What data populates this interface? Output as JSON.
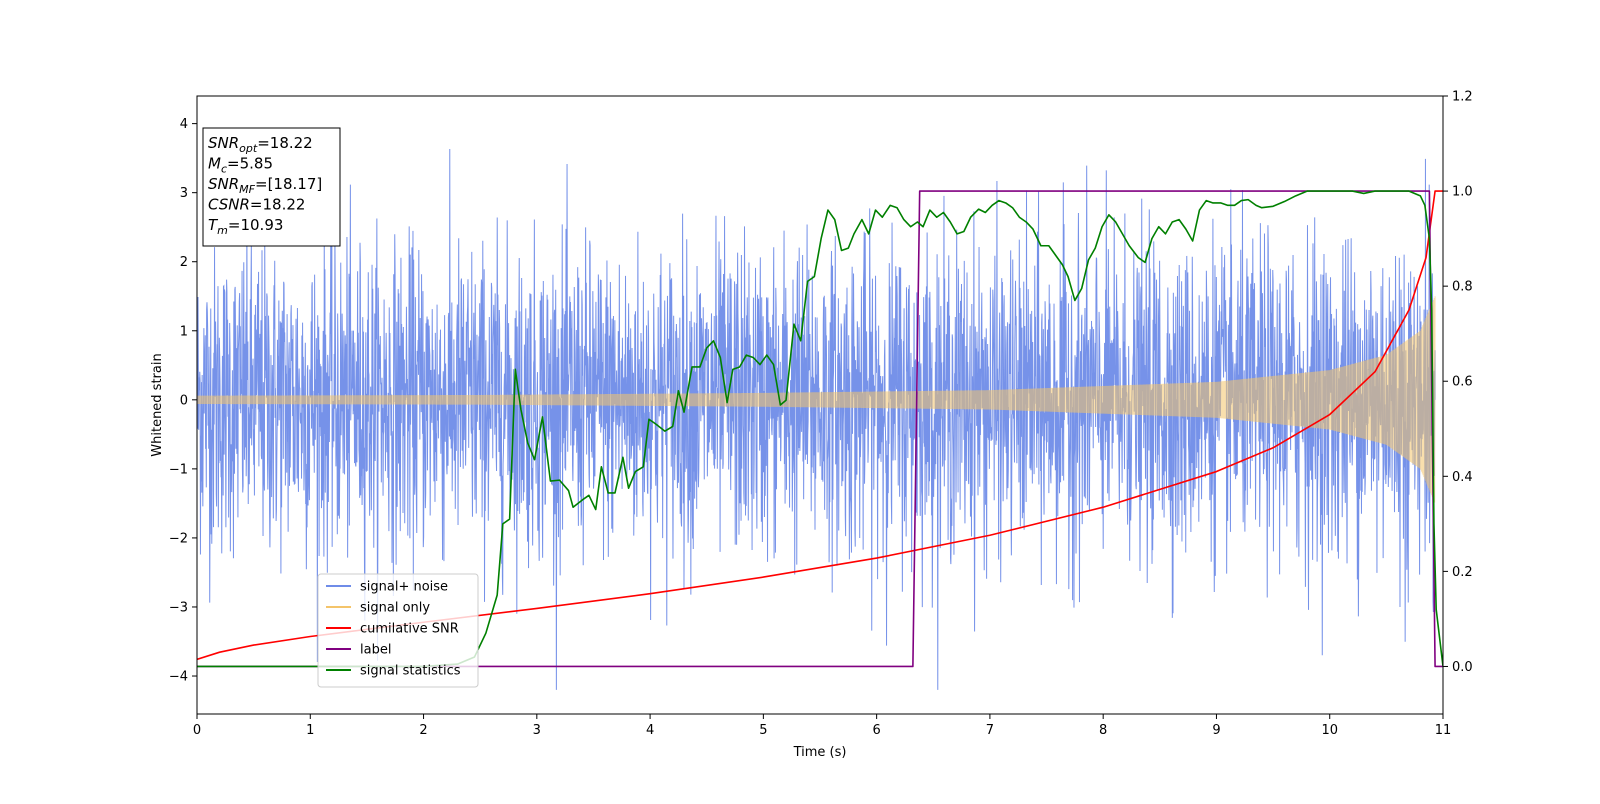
{
  "chart_data": {
    "type": "line",
    "xlabel": "Time (s)",
    "ylabel": "Whitened strain",
    "xlim": [
      0,
      11
    ],
    "ylim_left": [
      -4.55,
      4.4
    ],
    "ylim_right": [
      -0.1,
      1.2
    ],
    "x_ticks": [
      0,
      1,
      2,
      3,
      4,
      5,
      6,
      7,
      8,
      9,
      10,
      11
    ],
    "y_ticks_left": [
      -4,
      -3,
      -2,
      -1,
      0,
      1,
      2,
      3,
      4
    ],
    "y_ticks_right": [
      0.0,
      0.2,
      0.4,
      0.6,
      0.8,
      1.0,
      1.2
    ],
    "info_box": [
      {
        "main": "SNR",
        "sub": "opt",
        "value": "=18.22"
      },
      {
        "main": "M",
        "sub": "c",
        "value": "=5.85"
      },
      {
        "main": "SNR",
        "sub": "MF",
        "value": "=[18.17]"
      },
      {
        "main": "CSNR",
        "sub": "",
        "value": "=18.22"
      },
      {
        "main": "T",
        "sub": "m",
        "value": "=10.93"
      }
    ],
    "legend_position": "lower-left",
    "series": [
      {
        "name": "signal+ noise",
        "axis": "left",
        "color": "#6f8ce8",
        "kind": "noise",
        "description_values": {
          "std": 1.1,
          "max_peak": 4.0,
          "min_peak": -4.2,
          "x_range": [
            0,
            10.93
          ]
        }
      },
      {
        "name": "signal only",
        "axis": "left",
        "color": "#f4c46a",
        "kind": "chirp",
        "amplitude": [
          [
            0,
            0.06
          ],
          [
            2.5,
            0.07
          ],
          [
            5,
            0.1
          ],
          [
            7,
            0.14
          ],
          [
            9,
            0.26
          ],
          [
            10,
            0.43
          ],
          [
            10.5,
            0.65
          ],
          [
            10.8,
            1.0
          ],
          [
            10.93,
            1.5
          ]
        ],
        "x_range": [
          0,
          10.93
        ]
      },
      {
        "name": "cumilative SNR",
        "axis": "right",
        "color": "#ff0000",
        "points": [
          [
            0,
            0.015
          ],
          [
            0.2,
            0.03
          ],
          [
            0.5,
            0.045
          ],
          [
            1,
            0.063
          ],
          [
            2,
            0.093
          ],
          [
            3,
            0.122
          ],
          [
            4,
            0.153
          ],
          [
            5,
            0.188
          ],
          [
            6,
            0.228
          ],
          [
            7,
            0.276
          ],
          [
            8,
            0.335
          ],
          [
            9,
            0.41
          ],
          [
            9.5,
            0.46
          ],
          [
            10,
            0.53
          ],
          [
            10.4,
            0.62
          ],
          [
            10.7,
            0.75
          ],
          [
            10.85,
            0.86
          ],
          [
            10.93,
            1.0
          ],
          [
            11,
            1.0
          ]
        ]
      },
      {
        "name": "label",
        "axis": "right",
        "color": "#800080",
        "points": [
          [
            0,
            0.0
          ],
          [
            6.32,
            0.0
          ],
          [
            6.38,
            1.0
          ],
          [
            10.88,
            1.0
          ],
          [
            10.93,
            0.0
          ],
          [
            11,
            0.0
          ]
        ]
      },
      {
        "name": "signal statistics",
        "axis": "right",
        "color": "#008000",
        "points": [
          [
            0,
            0.0
          ],
          [
            1,
            0.0
          ],
          [
            2,
            0.0
          ],
          [
            2.3,
            0.005
          ],
          [
            2.45,
            0.02
          ],
          [
            2.55,
            0.07
          ],
          [
            2.65,
            0.15
          ],
          [
            2.7,
            0.3
          ],
          [
            2.76,
            0.31
          ],
          [
            2.81,
            0.625
          ],
          [
            2.86,
            0.54
          ],
          [
            2.92,
            0.47
          ],
          [
            2.98,
            0.435
          ],
          [
            3.05,
            0.525
          ],
          [
            3.12,
            0.39
          ],
          [
            3.2,
            0.392
          ],
          [
            3.28,
            0.37
          ],
          [
            3.32,
            0.335
          ],
          [
            3.4,
            0.35
          ],
          [
            3.46,
            0.36
          ],
          [
            3.52,
            0.33
          ],
          [
            3.57,
            0.42
          ],
          [
            3.63,
            0.365
          ],
          [
            3.69,
            0.365
          ],
          [
            3.76,
            0.44
          ],
          [
            3.81,
            0.375
          ],
          [
            3.87,
            0.41
          ],
          [
            3.94,
            0.42
          ],
          [
            3.99,
            0.52
          ],
          [
            4.05,
            0.51
          ],
          [
            4.13,
            0.495
          ],
          [
            4.2,
            0.505
          ],
          [
            4.25,
            0.58
          ],
          [
            4.3,
            0.535
          ],
          [
            4.37,
            0.63
          ],
          [
            4.44,
            0.63
          ],
          [
            4.5,
            0.67
          ],
          [
            4.56,
            0.685
          ],
          [
            4.62,
            0.65
          ],
          [
            4.68,
            0.555
          ],
          [
            4.73,
            0.625
          ],
          [
            4.79,
            0.63
          ],
          [
            4.85,
            0.655
          ],
          [
            4.91,
            0.65
          ],
          [
            4.97,
            0.635
          ],
          [
            5.03,
            0.655
          ],
          [
            5.09,
            0.635
          ],
          [
            5.15,
            0.55
          ],
          [
            5.2,
            0.56
          ],
          [
            5.27,
            0.72
          ],
          [
            5.33,
            0.685
          ],
          [
            5.39,
            0.81
          ],
          [
            5.45,
            0.82
          ],
          [
            5.51,
            0.9
          ],
          [
            5.57,
            0.96
          ],
          [
            5.63,
            0.94
          ],
          [
            5.69,
            0.875
          ],
          [
            5.75,
            0.88
          ],
          [
            5.8,
            0.91
          ],
          [
            5.87,
            0.94
          ],
          [
            5.93,
            0.91
          ],
          [
            5.99,
            0.96
          ],
          [
            6.05,
            0.945
          ],
          [
            6.12,
            0.97
          ],
          [
            6.18,
            0.965
          ],
          [
            6.24,
            0.94
          ],
          [
            6.3,
            0.925
          ],
          [
            6.36,
            0.935
          ],
          [
            6.41,
            0.925
          ],
          [
            6.47,
            0.96
          ],
          [
            6.53,
            0.945
          ],
          [
            6.59,
            0.955
          ],
          [
            6.65,
            0.935
          ],
          [
            6.71,
            0.91
          ],
          [
            6.77,
            0.915
          ],
          [
            6.83,
            0.945
          ],
          [
            6.9,
            0.962
          ],
          [
            6.96,
            0.955
          ],
          [
            7.02,
            0.97
          ],
          [
            7.08,
            0.98
          ],
          [
            7.14,
            0.975
          ],
          [
            7.2,
            0.965
          ],
          [
            7.26,
            0.945
          ],
          [
            7.32,
            0.935
          ],
          [
            7.38,
            0.92
          ],
          [
            7.45,
            0.885
          ],
          [
            7.52,
            0.885
          ],
          [
            7.58,
            0.865
          ],
          [
            7.64,
            0.845
          ],
          [
            7.69,
            0.82
          ],
          [
            7.75,
            0.77
          ],
          [
            7.81,
            0.795
          ],
          [
            7.87,
            0.855
          ],
          [
            7.93,
            0.88
          ],
          [
            7.99,
            0.925
          ],
          [
            8.05,
            0.95
          ],
          [
            8.11,
            0.935
          ],
          [
            8.17,
            0.91
          ],
          [
            8.23,
            0.885
          ],
          [
            8.31,
            0.86
          ],
          [
            8.37,
            0.85
          ],
          [
            8.43,
            0.9
          ],
          [
            8.49,
            0.925
          ],
          [
            8.55,
            0.91
          ],
          [
            8.61,
            0.935
          ],
          [
            8.67,
            0.94
          ],
          [
            8.73,
            0.92
          ],
          [
            8.79,
            0.895
          ],
          [
            8.85,
            0.96
          ],
          [
            8.91,
            0.98
          ],
          [
            8.97,
            0.975
          ],
          [
            9.04,
            0.975
          ],
          [
            9.1,
            0.97
          ],
          [
            9.16,
            0.97
          ],
          [
            9.22,
            0.98
          ],
          [
            9.28,
            0.982
          ],
          [
            9.35,
            0.97
          ],
          [
            9.4,
            0.965
          ],
          [
            9.5,
            0.968
          ],
          [
            9.6,
            0.978
          ],
          [
            9.7,
            0.99
          ],
          [
            9.8,
            1.0
          ],
          [
            9.9,
            1.0
          ],
          [
            10.0,
            1.0
          ],
          [
            10.1,
            1.0
          ],
          [
            10.2,
            1.0
          ],
          [
            10.3,
            0.995
          ],
          [
            10.4,
            1.0
          ],
          [
            10.5,
            1.0
          ],
          [
            10.6,
            1.0
          ],
          [
            10.7,
            1.0
          ],
          [
            10.8,
            0.99
          ],
          [
            10.84,
            0.97
          ],
          [
            10.88,
            0.9
          ],
          [
            10.9,
            0.75
          ],
          [
            10.92,
            0.3
          ],
          [
            10.94,
            0.12
          ],
          [
            11,
            0.0
          ]
        ]
      }
    ]
  }
}
